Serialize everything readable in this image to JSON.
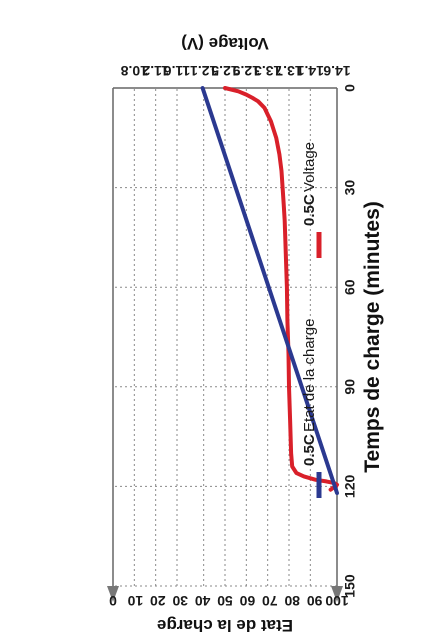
{
  "chart_data": {
    "type": "line",
    "title": "",
    "xlabel": "Temps de charge (minutes)",
    "ylabel_left": "Voltage (V)",
    "ylabel_right": "Etat de la charge",
    "xlim": [
      0,
      150
    ],
    "x_ticks": [
      "0",
      "30",
      "60",
      "90",
      "120",
      "150"
    ],
    "ylim_left": [
      10.4,
      14.6
    ],
    "y_left_ticks": [
      "10.8",
      "11.2",
      "11.6",
      "12.1",
      "12.5",
      "12.9",
      "13.3",
      "13.7",
      "14.1",
      "14.6"
    ],
    "ylim_right": [
      0,
      100
    ],
    "y_right_ticks": [
      "0",
      "10",
      "20",
      "30",
      "40",
      "50",
      "60",
      "70",
      "80",
      "90",
      "100"
    ],
    "grid": true,
    "legend_position": "top",
    "series": [
      {
        "name_bold": "0.5C",
        "name": "Voltage",
        "color": "#d9202a",
        "axis": "left",
        "x": [
          0,
          1,
          2,
          3,
          4,
          6,
          8,
          10,
          12,
          15,
          20,
          25,
          30,
          35,
          40,
          50,
          60,
          70,
          80,
          90,
          100,
          110,
          114,
          116,
          117,
          118,
          118.5,
          119,
          119.5,
          120,
          120.5,
          121
        ],
        "y": [
          12.5,
          12.75,
          12.9,
          13.02,
          13.12,
          13.24,
          13.3,
          13.36,
          13.4,
          13.46,
          13.52,
          13.56,
          13.58,
          13.6,
          13.62,
          13.64,
          13.66,
          13.67,
          13.69,
          13.7,
          13.72,
          13.74,
          13.76,
          13.84,
          13.98,
          14.2,
          14.4,
          14.55,
          14.6,
          14.58,
          14.52,
          14.48
        ]
      },
      {
        "name_bold": "0.5C",
        "name": "Etat de la charge",
        "color": "#2b3990",
        "axis": "right",
        "x": [
          0,
          122
        ],
        "y": [
          40,
          100
        ]
      }
    ]
  }
}
